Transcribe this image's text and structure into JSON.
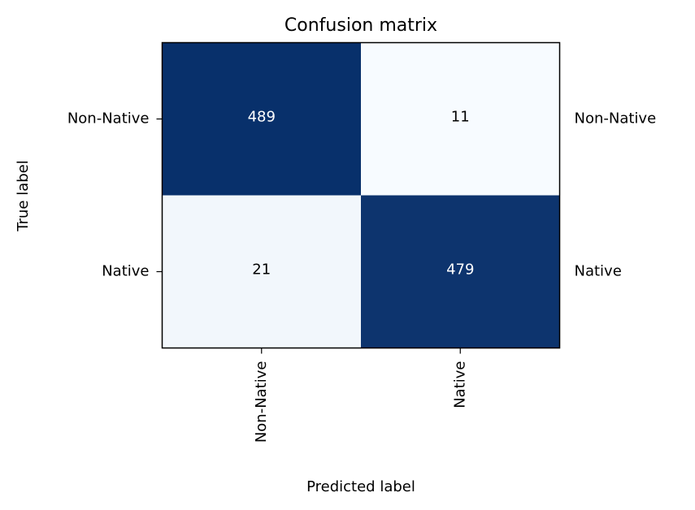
{
  "chart_data": {
    "type": "heatmap",
    "title": "Confusion matrix",
    "xlabel": "Predicted label",
    "ylabel": "True label",
    "x_categories": [
      "Non-Native",
      "Native"
    ],
    "y_categories": [
      "Non-Native",
      "Native"
    ],
    "right_labels": [
      "Non-Native",
      "Native"
    ],
    "values": [
      [
        489,
        11
      ],
      [
        21,
        479
      ]
    ],
    "colormap": "Blues",
    "colors": {
      "low": "#f7fbff",
      "high": "#08306b",
      "text_dark": "#000000",
      "text_light": "#ffffff"
    },
    "grid": false
  }
}
